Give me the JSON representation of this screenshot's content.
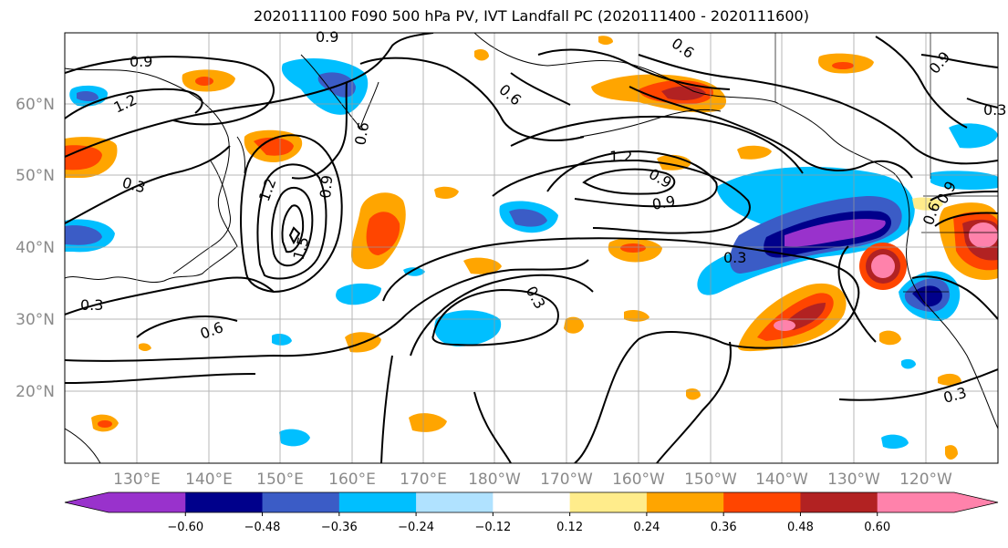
{
  "title": "2020111100 F090 500 hPa PV, IVT Landfall PC (2020111400 - 2020111600)",
  "lat_labels": [
    "60°N",
    "50°N",
    "40°N",
    "30°N",
    "20°N"
  ],
  "lon_labels": [
    "130°E",
    "140°E",
    "150°E",
    "160°E",
    "170°E",
    "180°W",
    "170°W",
    "160°W",
    "150°W",
    "140°W",
    "130°W",
    "120°W"
  ],
  "colorbar": {
    "colors": [
      "#9932cc",
      "#00008b",
      "#3b5cc6",
      "#00bfff",
      "#b0e2ff",
      "#ffffff",
      "#ffec8b",
      "#ffa500",
      "#ff4500",
      "#b22222",
      "#ff82ab"
    ],
    "tick_labels": [
      "−0.60",
      "−0.48",
      "−0.36",
      "−0.24",
      "−0.12",
      "0.12",
      "0.24",
      "0.36",
      "0.48",
      "0.60"
    ]
  },
  "contour_labels": [
    "0.9",
    "0.9",
    "1.2",
    "0.3",
    "0.3",
    "0.6",
    "0.6",
    "1.2",
    "1.5",
    "0.9",
    "0.3",
    "0.6",
    "0.3",
    "1.2",
    "0.9",
    "0.3",
    "0.9",
    "0.3",
    "0.6",
    "0.6",
    "0.9",
    "0.9"
  ]
}
